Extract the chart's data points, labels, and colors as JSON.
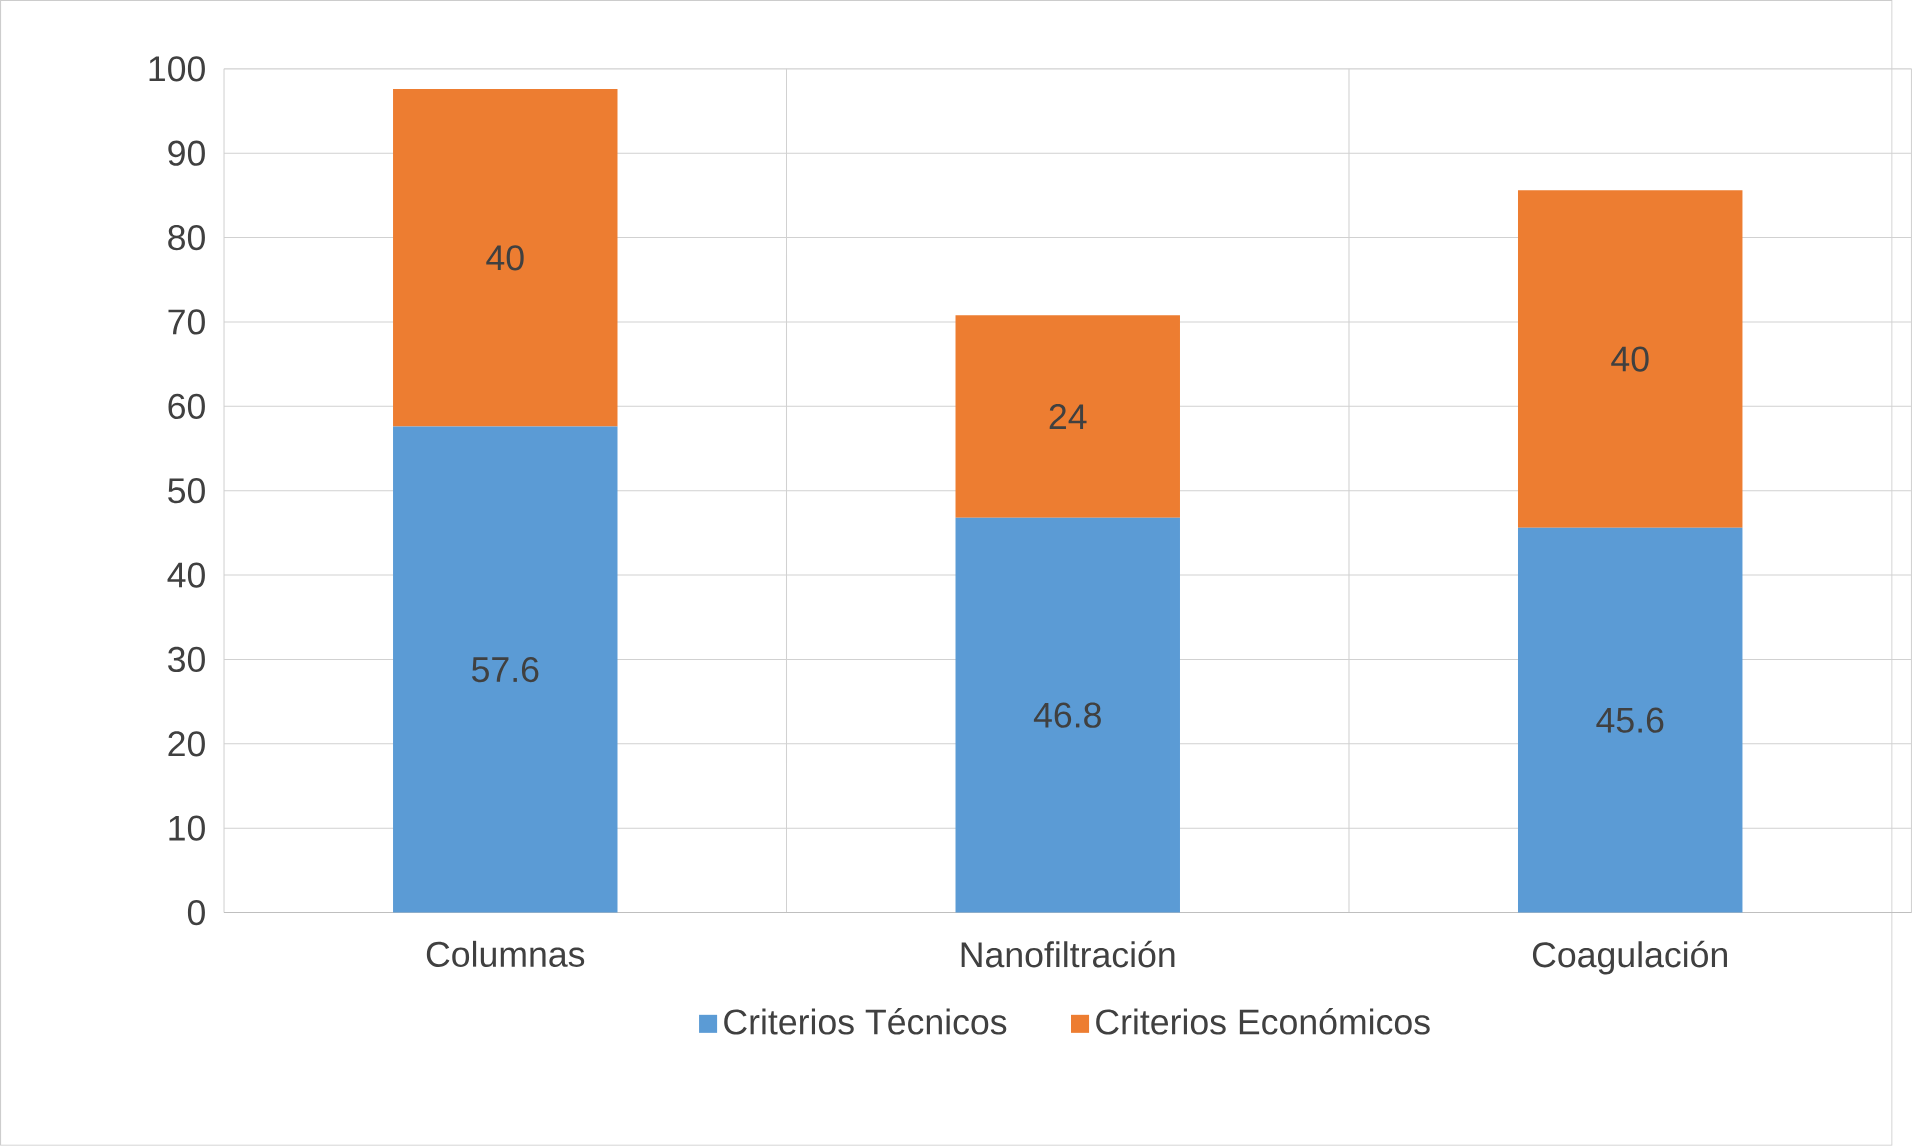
{
  "chart_data": {
    "type": "bar",
    "stacked": true,
    "categories": [
      "Columnas",
      "Nanofiltración",
      "Coagulación"
    ],
    "series": [
      {
        "name": "Criterios Técnicos",
        "color": "#5b9bd5",
        "values": [
          57.6,
          46.8,
          45.6
        ]
      },
      {
        "name": "Criterios Económicos",
        "color": "#ed7d31",
        "values": [
          40,
          24,
          40
        ]
      }
    ],
    "ylim": [
      0,
      100
    ],
    "yticks": [
      0,
      10,
      20,
      30,
      40,
      50,
      60,
      70,
      80,
      90,
      100
    ],
    "grid": true,
    "legend": "bottom",
    "data_labels": true
  }
}
